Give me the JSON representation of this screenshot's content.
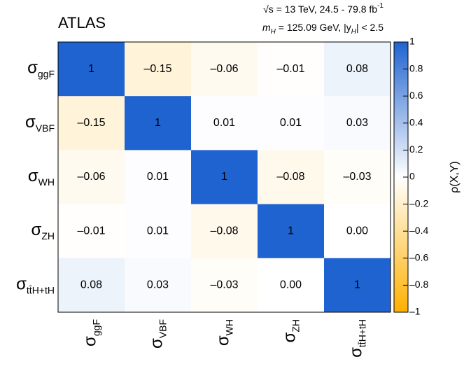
{
  "chart_data": {
    "type": "heatmap",
    "experiment": "ATLAS",
    "energy_line": [
      "√s = 13 TeV, 24.5 - 79.8 fb",
      "-1"
    ],
    "mass_line": [
      "m",
      "H",
      " = 125.09 GeV, |y",
      "H",
      "| < 2.5"
    ],
    "symbol": "σ",
    "categories": [
      "ggF",
      "VBF",
      "WH",
      "ZH",
      "tt̄H+tH"
    ],
    "values": [
      [
        1,
        -0.15,
        -0.06,
        -0.01,
        0.08
      ],
      [
        -0.15,
        1,
        0.01,
        0.01,
        0.03
      ],
      [
        -0.06,
        0.01,
        1,
        -0.08,
        -0.03
      ],
      [
        -0.01,
        0.01,
        -0.08,
        1,
        0.0
      ],
      [
        0.08,
        0.03,
        -0.03,
        0.0,
        1
      ]
    ],
    "value_labels": [
      [
        "1",
        "–0.15",
        "–0.06",
        "–0.01",
        "0.08"
      ],
      [
        "–0.15",
        "1",
        "0.01",
        "0.01",
        "0.03"
      ],
      [
        "–0.06",
        "0.01",
        "1",
        "–0.08",
        "–0.03"
      ],
      [
        "–0.01",
        "0.01",
        "–0.08",
        "1",
        "0.00"
      ],
      [
        "0.08",
        "0.03",
        "–0.03",
        "0.00",
        "1"
      ]
    ],
    "colorbar_label": "ρ(X,Y)",
    "zlim": [
      -1,
      1
    ],
    "zticks": [
      {
        "value": -1,
        "label": "–1"
      },
      {
        "value": -0.8,
        "label": "–0.8"
      },
      {
        "value": -0.6,
        "label": "–0.6"
      },
      {
        "value": -0.4,
        "label": "–0.4"
      },
      {
        "value": -0.2,
        "label": "–0.2"
      },
      0,
      0.2,
      0.4,
      0.6,
      0.8,
      1
    ],
    "colormap": [
      "#ffb000",
      "#ffffff",
      "#1f63d0"
    ]
  }
}
